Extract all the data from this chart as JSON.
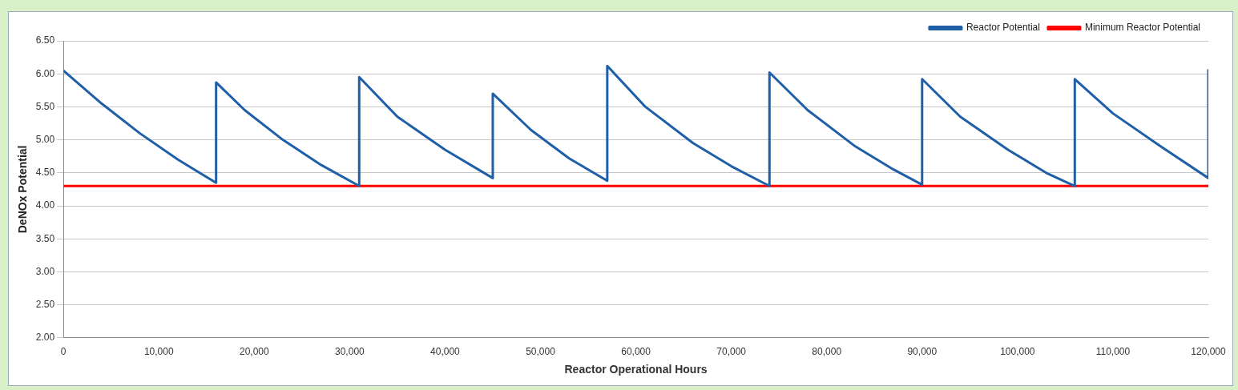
{
  "chart_data": {
    "type": "line",
    "xlabel": "Reactor Operational Hours",
    "ylabel": "DeNOx Potential",
    "series": [
      {
        "name": "Reactor Potential",
        "color": "#1f5fa8",
        "x": [
          0,
          4000,
          8000,
          12000,
          16000,
          16000,
          19000,
          23000,
          27000,
          31000,
          31000,
          35000,
          40000,
          45000,
          45000,
          49000,
          53000,
          57000,
          57000,
          61000,
          66000,
          70000,
          74000,
          74000,
          78000,
          83000,
          87000,
          90000,
          90000,
          94000,
          99000,
          103000,
          106000,
          106000,
          110000,
          115000,
          120000,
          120000
        ],
        "values": [
          6.05,
          5.55,
          5.1,
          4.7,
          4.35,
          5.87,
          5.45,
          5.0,
          4.62,
          4.3,
          5.95,
          5.35,
          4.85,
          4.42,
          5.7,
          5.15,
          4.72,
          4.38,
          6.12,
          5.5,
          4.95,
          4.6,
          4.3,
          6.02,
          5.45,
          4.9,
          4.55,
          4.32,
          5.92,
          5.35,
          4.85,
          4.5,
          4.3,
          5.92,
          5.4,
          4.9,
          4.42,
          6.07
        ]
      },
      {
        "name": "Minimum Reactor Potential",
        "color": "#ff0000",
        "x": [
          0,
          120000
        ],
        "values": [
          4.3,
          4.3
        ]
      }
    ],
    "xlim": [
      0,
      120000
    ],
    "xticks": [
      0,
      {
        "value": 10000,
        "label": "10,000"
      },
      {
        "value": 20000,
        "label": "20,000"
      },
      {
        "value": 30000,
        "label": "30,000"
      },
      {
        "value": 40000,
        "label": "40,000"
      },
      {
        "value": 50000,
        "label": "50,000"
      },
      {
        "value": 60000,
        "label": "60,000"
      },
      {
        "value": 70000,
        "label": "70,000"
      },
      {
        "value": 80000,
        "label": "80,000"
      },
      {
        "value": 90000,
        "label": "90,000"
      },
      {
        "value": 100000,
        "label": "100,000"
      },
      {
        "value": 110000,
        "label": "110,000"
      },
      {
        "value": 120000,
        "label": "120,000"
      }
    ],
    "ylim": [
      2,
      6.5
    ],
    "yticks": [
      {
        "value": 2,
        "label": "2.00"
      },
      {
        "value": 2.5,
        "label": "2.50"
      },
      {
        "value": 3,
        "label": "3.00"
      },
      {
        "value": 3.5,
        "label": "3.50"
      },
      {
        "value": 4,
        "label": "4.00"
      },
      {
        "value": 4.5,
        "label": "4.50"
      },
      {
        "value": 5,
        "label": "5.00"
      },
      {
        "value": 5.5,
        "label": "5.50"
      },
      {
        "value": 6,
        "label": "6.00"
      },
      {
        "value": 6.5,
        "label": "6.50"
      }
    ],
    "grid": "y",
    "legend": "top right",
    "marker": "none",
    "line_style": "solid"
  }
}
